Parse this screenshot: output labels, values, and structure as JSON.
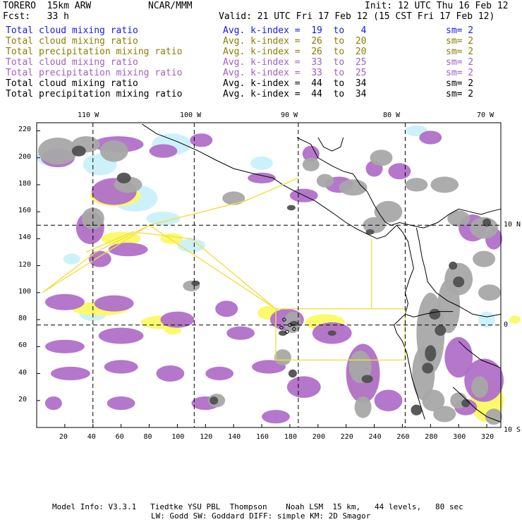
{
  "header": {
    "model": "TORERO  15km ARW",
    "center": "NCAR/MMM",
    "init": "Init: 12 UTC Thu 16 Feb 12",
    "fcst": "Fcst:   33 h",
    "valid": "Valid: 21 UTC Fri 17 Feb 12 (15 CST Fri 17 Feb 12)"
  },
  "legend": [
    {
      "field": "Total cloud mixing ratio",
      "index": "Avg. k-index =  19  to   4",
      "sm": "sm= 2",
      "color": "#1a1ae6"
    },
    {
      "field": "Total cloud mixing ratio",
      "index": "Avg. k-index =  26  to  20",
      "sm": "sm= 2",
      "color": "#8a7e00"
    },
    {
      "field": "Total precipitation mixing ratio",
      "index": "Avg. k-index =  26  to  20",
      "sm": "sm= 2",
      "color": "#8a7e00"
    },
    {
      "field": "Total cloud mixing ratio",
      "index": "Avg. k-index =  33  to  25",
      "sm": "sm= 2",
      "color": "#a060c0"
    },
    {
      "field": "Total precipitation mixing ratio",
      "index": "Avg. k-index =  33  to  25",
      "sm": "sm= 2",
      "color": "#a060c0"
    },
    {
      "field": "Total cloud mixing ratio",
      "index": "Avg. k-index =  44  to  34",
      "sm": "sm= 2",
      "color": "#000000"
    },
    {
      "field": "Total precipitation mixing ratio",
      "index": "Avg. k-index =  44  to  34",
      "sm": "sm= 2",
      "color": "#000000"
    }
  ],
  "map": {
    "lon_labels": [
      "110 W",
      "100 W",
      "90 W",
      "80 W",
      "70 W"
    ],
    "lat_labels": [
      "10 N",
      "0",
      "10 S"
    ],
    "x_ticks": [
      "20",
      "40",
      "60",
      "80",
      "100",
      "120",
      "140",
      "160",
      "180",
      "200",
      "220",
      "240",
      "260",
      "280",
      "300",
      "320"
    ],
    "y_ticks": [
      "20",
      "40",
      "60",
      "80",
      "100",
      "120",
      "140",
      "160",
      "180",
      "200",
      "220"
    ],
    "x_range": [
      0,
      330
    ],
    "y_range": [
      0,
      226
    ],
    "colors": {
      "cyan": "#c8f0fa",
      "yellow": "#fafa64",
      "purple": "#b070c8",
      "gray": "#a8a8a8",
      "dark": "#505050",
      "coast": "#000000",
      "domain_box": "#f0e040",
      "grid": "#000000"
    }
  },
  "footer": {
    "line1": "Model Info: V3.3.1   Tiedtke YSU PBL  Thompson    Noah LSM  15 km,   44 levels,   80 sec",
    "line2": "LW: Godd SW: Goddard DIFF: simple KM: 2D Smagor"
  }
}
